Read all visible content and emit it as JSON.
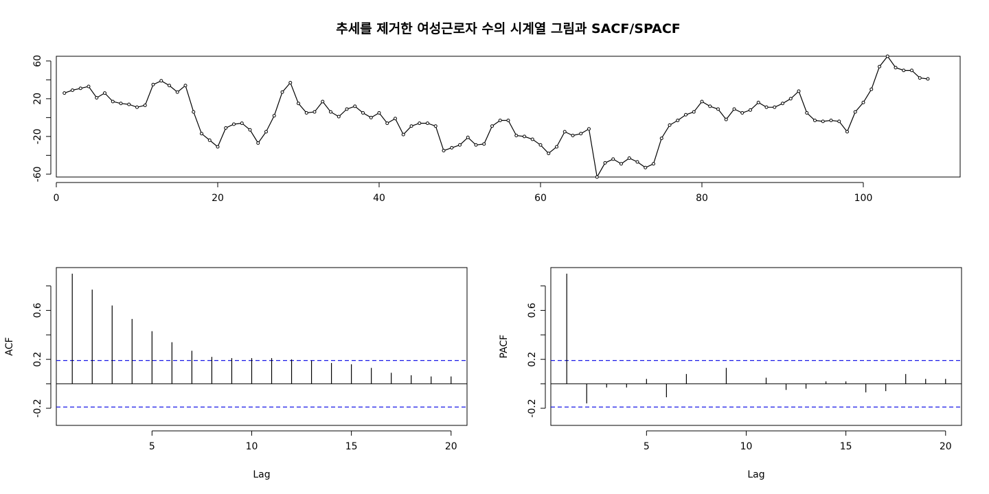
{
  "figure": {
    "title": "추세를 제거한 여성근로자 수의 시계열 그림과 SACF/SPACF"
  },
  "chart_data": [
    {
      "type": "line",
      "name": "detrended-series",
      "xlabel": "",
      "ylabel": "",
      "xlim": [
        0,
        112
      ],
      "ylim": [
        -63,
        65
      ],
      "xticks": [
        0,
        20,
        40,
        60,
        80,
        100
      ],
      "yticks": [
        -60,
        -20,
        20,
        60
      ],
      "points": true,
      "x": [
        1,
        2,
        3,
        4,
        5,
        6,
        7,
        8,
        9,
        10,
        11,
        12,
        13,
        14,
        15,
        16,
        17,
        18,
        19,
        20,
        21,
        22,
        23,
        24,
        25,
        26,
        27,
        28,
        29,
        30,
        31,
        32,
        33,
        34,
        35,
        36,
        37,
        38,
        39,
        40,
        41,
        42,
        43,
        44,
        45,
        46,
        47,
        48,
        49,
        50,
        51,
        52,
        53,
        54,
        55,
        56,
        57,
        58,
        59,
        60,
        61,
        62,
        63,
        64,
        65,
        66,
        67,
        68,
        69,
        70,
        71,
        72,
        73,
        74,
        75,
        76,
        77,
        78,
        79,
        80,
        81,
        82,
        83,
        84,
        85,
        86,
        87,
        88,
        89,
        90,
        91,
        92,
        93,
        94,
        95,
        96,
        97,
        98,
        99,
        100,
        101,
        102,
        103,
        104,
        105,
        106,
        107,
        108
      ],
      "y": [
        26,
        29,
        31,
        33,
        21,
        26,
        17,
        15,
        14,
        11,
        13,
        35,
        39,
        34,
        27,
        34,
        6,
        -17,
        -24,
        -31,
        -11,
        -7,
        -6,
        -13,
        -27,
        -15,
        2,
        27,
        37,
        15,
        5,
        6,
        17,
        6,
        1,
        9,
        12,
        5,
        0,
        5,
        -6,
        -1,
        -18,
        -9,
        -6,
        -6,
        -9,
        -35,
        -32,
        -29,
        -21,
        -29,
        -28,
        -9,
        -3,
        -3,
        -19,
        -20,
        -23,
        -29,
        -38,
        -31,
        -15,
        -19,
        -17,
        -12,
        -63,
        -48,
        -44,
        -49,
        -43,
        -47,
        -53,
        -49,
        -22,
        -8,
        -3,
        3,
        6,
        17,
        12,
        9,
        -2,
        9,
        5,
        8,
        16,
        11,
        11,
        15,
        20,
        28,
        5,
        -3,
        -4,
        -3,
        -4,
        -15,
        6,
        16,
        30,
        54,
        65,
        53,
        50,
        50,
        42,
        41
      ]
    },
    {
      "type": "bar",
      "name": "sample-acf",
      "xlabel": "Lag",
      "ylabel": "ACF",
      "xlim": [
        0.2,
        20.8
      ],
      "ylim": [
        -0.34,
        0.95
      ],
      "xticks": [
        5,
        10,
        15,
        20
      ],
      "yticks": [
        -0.2,
        0.2,
        0.6
      ],
      "confidence_band": 0.19,
      "confidence_color": "#1515e6",
      "lags": [
        1,
        2,
        3,
        4,
        5,
        6,
        7,
        8,
        9,
        10,
        11,
        12,
        13,
        14,
        15,
        16,
        17,
        18,
        19,
        20
      ],
      "values": [
        0.9,
        0.77,
        0.64,
        0.53,
        0.43,
        0.34,
        0.27,
        0.22,
        0.21,
        0.21,
        0.21,
        0.2,
        0.19,
        0.17,
        0.16,
        0.13,
        0.09,
        0.07,
        0.06,
        0.06
      ]
    },
    {
      "type": "bar",
      "name": "sample-pacf",
      "xlabel": "Lag",
      "ylabel": "PACF",
      "xlim": [
        0.2,
        20.8
      ],
      "ylim": [
        -0.34,
        0.95
      ],
      "xticks": [
        5,
        10,
        15,
        20
      ],
      "yticks": [
        -0.2,
        0.2,
        0.6
      ],
      "confidence_band": 0.19,
      "confidence_color": "#1515e6",
      "lags": [
        1,
        2,
        3,
        4,
        5,
        6,
        7,
        8,
        9,
        10,
        11,
        12,
        13,
        14,
        15,
        16,
        17,
        18,
        19,
        20
      ],
      "values": [
        0.9,
        -0.16,
        -0.03,
        -0.03,
        0.04,
        -0.11,
        0.08,
        0.0,
        0.13,
        0.0,
        0.05,
        -0.05,
        -0.04,
        0.02,
        0.02,
        -0.07,
        -0.06,
        0.08,
        0.04,
        0.04
      ]
    }
  ]
}
